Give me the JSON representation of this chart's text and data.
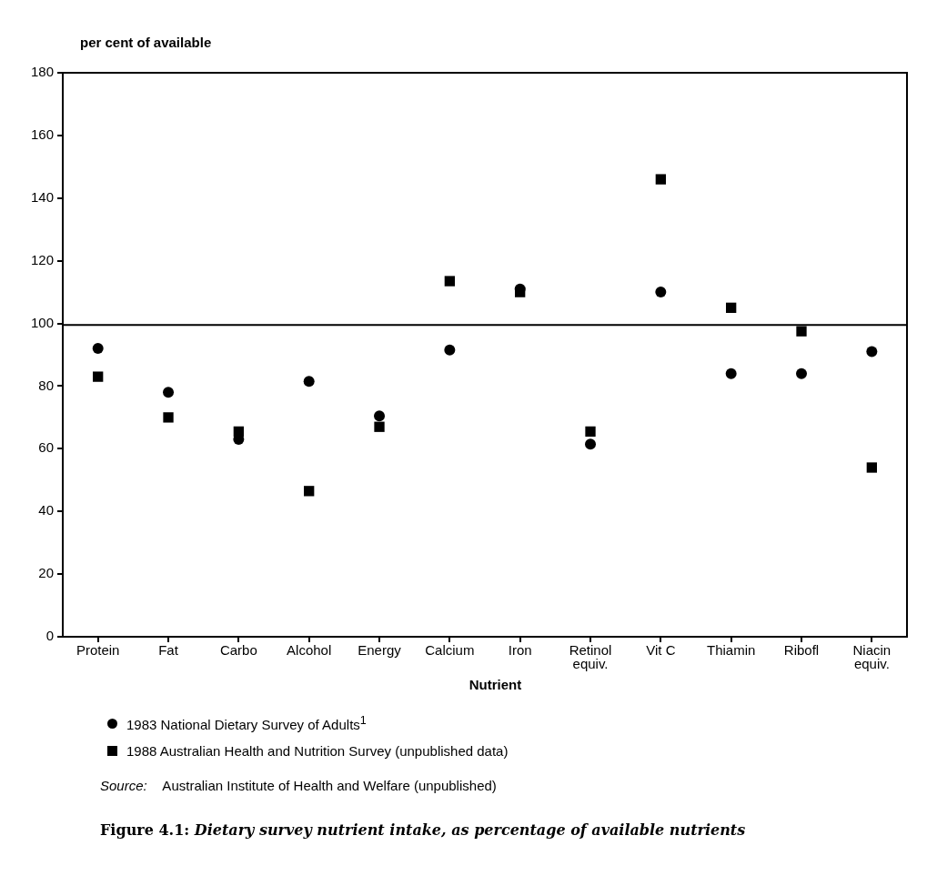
{
  "chart_data": {
    "type": "scatter",
    "title": "Figure 4.1: Dietary survey nutrient intake, as percentage of available nutrients",
    "xlabel": "Nutrient",
    "ylabel": "per cent of available",
    "categories": [
      "Protein",
      "Fat",
      "Carbo",
      "Alcohol",
      "Energy",
      "Calcium",
      "Iron",
      "Retinol\nequiv.",
      "Vit C",
      "Thiamin",
      "Ribofl",
      "Niacin\nequiv."
    ],
    "series": [
      {
        "name": "1983 National Dietary Survey of Adults$^{1}$",
        "color": "#000000",
        "marker": "circle",
        "values": [
          92,
          78,
          63,
          81.5,
          70.5,
          91.5,
          111,
          61.5,
          110,
          84,
          84,
          91
        ]
      },
      {
        "name": "1988 Australian Health and Nutrition Survey (unpublished data)",
        "color": "#000000",
        "marker": "square",
        "values": [
          83,
          70,
          65.5,
          46.5,
          67,
          113.5,
          110,
          65.5,
          146,
          105,
          97.5,
          54
        ]
      }
    ],
    "ylim": [
      0,
      180
    ],
    "yticks": [
      0,
      20,
      40,
      60,
      80,
      100,
      120,
      140,
      160,
      180
    ],
    "ref_lines": [
      {
        "axis": "y",
        "value": 99.5,
        "color": "#000000"
      }
    ],
    "grid": false,
    "legend": "bottom",
    "annotations": [
      "Source: Australian Institute of Health and Welfare (unpublished)"
    ]
  }
}
